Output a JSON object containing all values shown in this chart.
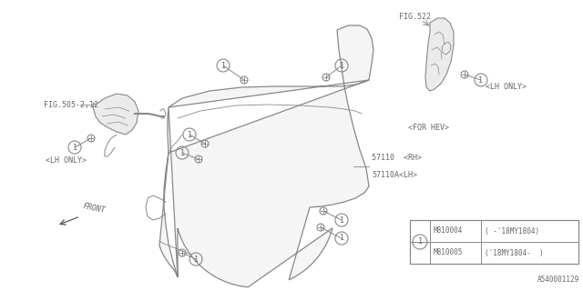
{
  "background_color": "#ffffff",
  "line_color": "#888888",
  "text_color": "#666666",
  "fig_id": "A540001129",
  "legend_rows": [
    {
      "part": "M810004",
      "desc": "(       -'18MY1804)"
    },
    {
      "part": "M810005",
      "desc": "('18MY1804-       )"
    }
  ]
}
